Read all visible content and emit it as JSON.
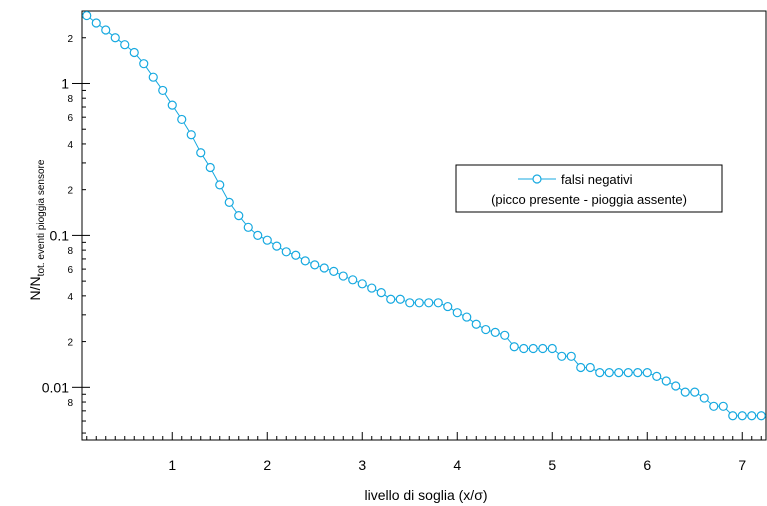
{
  "chart_data": {
    "type": "scatter",
    "xlabel": "livello di soglia (x/σ)",
    "ylabel": {
      "main": "N/N",
      "subscript": "tot. eventi pioggia sensore"
    },
    "xlim": [
      0.05,
      7.25
    ],
    "ylim": [
      0.0045,
      3.0
    ],
    "yscale": "log",
    "grid": false,
    "legend_position": "right",
    "x_ticks": [
      {
        "value": 1,
        "label": "1"
      },
      {
        "value": 2,
        "label": "2"
      },
      {
        "value": 3,
        "label": "3"
      },
      {
        "value": 4,
        "label": "4"
      },
      {
        "value": 5,
        "label": "5"
      },
      {
        "value": 6,
        "label": "6"
      },
      {
        "value": 7,
        "label": "7"
      }
    ],
    "y_major_ticks": [
      {
        "value": 1,
        "label": "1"
      },
      {
        "value": 0.1,
        "label": "0.1"
      },
      {
        "value": 0.01,
        "label": "0.01"
      }
    ],
    "y_minor_labeled_ticks": [
      {
        "value": 2,
        "label": "2"
      },
      {
        "value": 0.8,
        "label": "8"
      },
      {
        "value": 0.6,
        "label": "6"
      },
      {
        "value": 0.4,
        "label": "4"
      },
      {
        "value": 0.2,
        "label": "2"
      },
      {
        "value": 0.08,
        "label": "8"
      },
      {
        "value": 0.06,
        "label": "6"
      },
      {
        "value": 0.04,
        "label": "4"
      },
      {
        "value": 0.02,
        "label": "2"
      },
      {
        "value": 0.008,
        "label": "8"
      }
    ],
    "series": [
      {
        "name": "falsi negativi\n(picco presente - pioggia assente)",
        "color": "#17a9e0",
        "marker": "open-circle",
        "x": [
          0.1,
          0.2,
          0.3,
          0.4,
          0.5,
          0.6,
          0.7,
          0.8,
          0.9,
          1.0,
          1.1,
          1.2,
          1.3,
          1.4,
          1.5,
          1.6,
          1.7,
          1.8,
          1.9,
          2.0,
          2.1,
          2.2,
          2.3,
          2.4,
          2.5,
          2.6,
          2.7,
          2.8,
          2.9,
          3.0,
          3.1,
          3.2,
          3.3,
          3.4,
          3.5,
          3.6,
          3.7,
          3.8,
          3.9,
          4.0,
          4.1,
          4.2,
          4.3,
          4.4,
          4.5,
          4.6,
          4.7,
          4.8,
          4.9,
          5.0,
          5.1,
          5.2,
          5.3,
          5.4,
          5.5,
          5.6,
          5.7,
          5.8,
          5.9,
          6.0,
          6.1,
          6.2,
          6.3,
          6.4,
          6.5,
          6.6,
          6.7,
          6.8,
          6.9,
          7.0,
          7.1,
          7.2
        ],
        "y": [
          2.8,
          2.5,
          2.25,
          2.0,
          1.8,
          1.6,
          1.35,
          1.1,
          0.9,
          0.72,
          0.58,
          0.46,
          0.35,
          0.28,
          0.215,
          0.165,
          0.135,
          0.113,
          0.1,
          0.093,
          0.085,
          0.078,
          0.074,
          0.068,
          0.064,
          0.061,
          0.058,
          0.054,
          0.051,
          0.048,
          0.045,
          0.042,
          0.038,
          0.038,
          0.036,
          0.036,
          0.036,
          0.036,
          0.034,
          0.031,
          0.029,
          0.026,
          0.024,
          0.023,
          0.022,
          0.0185,
          0.018,
          0.018,
          0.018,
          0.018,
          0.016,
          0.016,
          0.0135,
          0.0135,
          0.0125,
          0.0125,
          0.0125,
          0.0125,
          0.0125,
          0.0125,
          0.0118,
          0.011,
          0.0102,
          0.0093,
          0.0093,
          0.0085,
          0.0075,
          0.0075,
          0.0065,
          0.0065,
          0.0065,
          0.0065
        ]
      }
    ]
  }
}
